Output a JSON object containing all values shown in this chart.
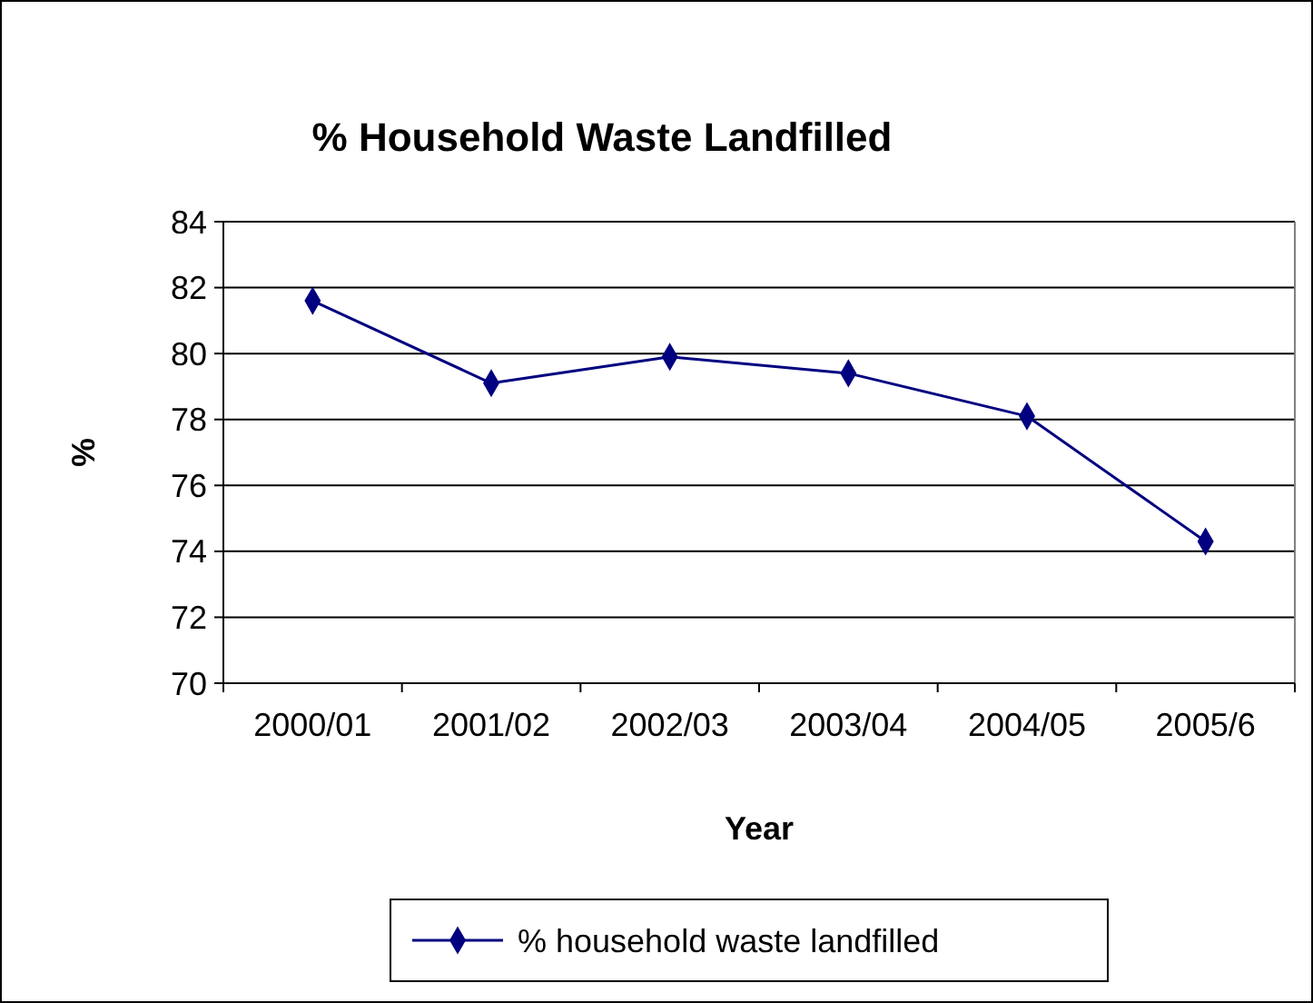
{
  "chart_data": {
    "type": "line",
    "title": "% Household Waste Landfilled",
    "xlabel": "Year",
    "ylabel": "%",
    "categories": [
      "2000/01",
      "2001/02",
      "2002/03",
      "2003/04",
      "2004/05",
      "2005/6"
    ],
    "series": [
      {
        "name": "% household waste landfilled",
        "color": "#000080",
        "values": [
          81.6,
          79.1,
          79.9,
          79.4,
          78.1,
          74.3
        ]
      }
    ],
    "ylim": [
      70,
      84
    ],
    "yticks": [
      70,
      72,
      74,
      76,
      78,
      80,
      82,
      84
    ],
    "grid": "y",
    "legend": "bottom",
    "marker": "diamond"
  }
}
